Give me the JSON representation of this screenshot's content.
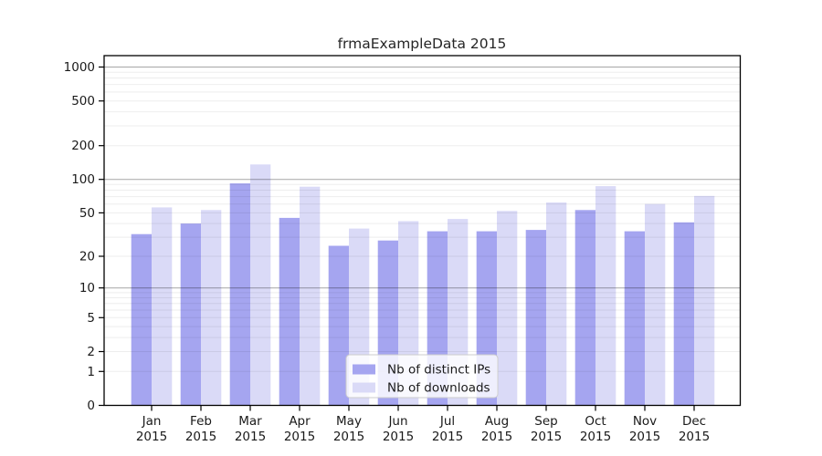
{
  "title": "frmaExampleData 2015",
  "chart_data": {
    "type": "bar",
    "title": "frmaExampleData 2015",
    "xlabel": "",
    "ylabel": "",
    "grid": "on",
    "y_scale": "log1p",
    "y_ticks": [
      0,
      1,
      2,
      5,
      10,
      20,
      50,
      100,
      200,
      500,
      1000
    ],
    "y_minor_gridlines": [
      1,
      2,
      3,
      4,
      5,
      6,
      7,
      8,
      9,
      20,
      30,
      40,
      50,
      60,
      70,
      80,
      90,
      200,
      300,
      400,
      500,
      600,
      700,
      800,
      900
    ],
    "y_major_gridlines": [
      10,
      100,
      1000
    ],
    "ylim": [
      0,
      1000
    ],
    "legend_position": "inside-bottom-center",
    "categories": [
      {
        "month": "Jan",
        "year": "2015"
      },
      {
        "month": "Feb",
        "year": "2015"
      },
      {
        "month": "Mar",
        "year": "2015"
      },
      {
        "month": "Apr",
        "year": "2015"
      },
      {
        "month": "May",
        "year": "2015"
      },
      {
        "month": "Jun",
        "year": "2015"
      },
      {
        "month": "Jul",
        "year": "2015"
      },
      {
        "month": "Aug",
        "year": "2015"
      },
      {
        "month": "Sep",
        "year": "2015"
      },
      {
        "month": "Oct",
        "year": "2015"
      },
      {
        "month": "Nov",
        "year": "2015"
      },
      {
        "month": "Dec",
        "year": "2015"
      }
    ],
    "series": [
      {
        "name": "Nb of distinct IPs",
        "color": "#a5a5f0",
        "values": [
          32,
          40,
          92,
          45,
          25,
          28,
          34,
          34,
          35,
          53,
          34,
          41
        ]
      },
      {
        "name": "Nb of downloads",
        "color": "#dadaf7",
        "values": [
          56,
          53,
          136,
          86,
          36,
          42,
          44,
          52,
          62,
          87,
          60,
          71
        ]
      }
    ]
  },
  "colors": {
    "background": "#ffffff",
    "frame": "#000000",
    "grid_minor": "rgba(0,0,0,0.07)",
    "grid_major": "rgba(0,0,0,0.35)",
    "text": "#1a1a1a"
  }
}
